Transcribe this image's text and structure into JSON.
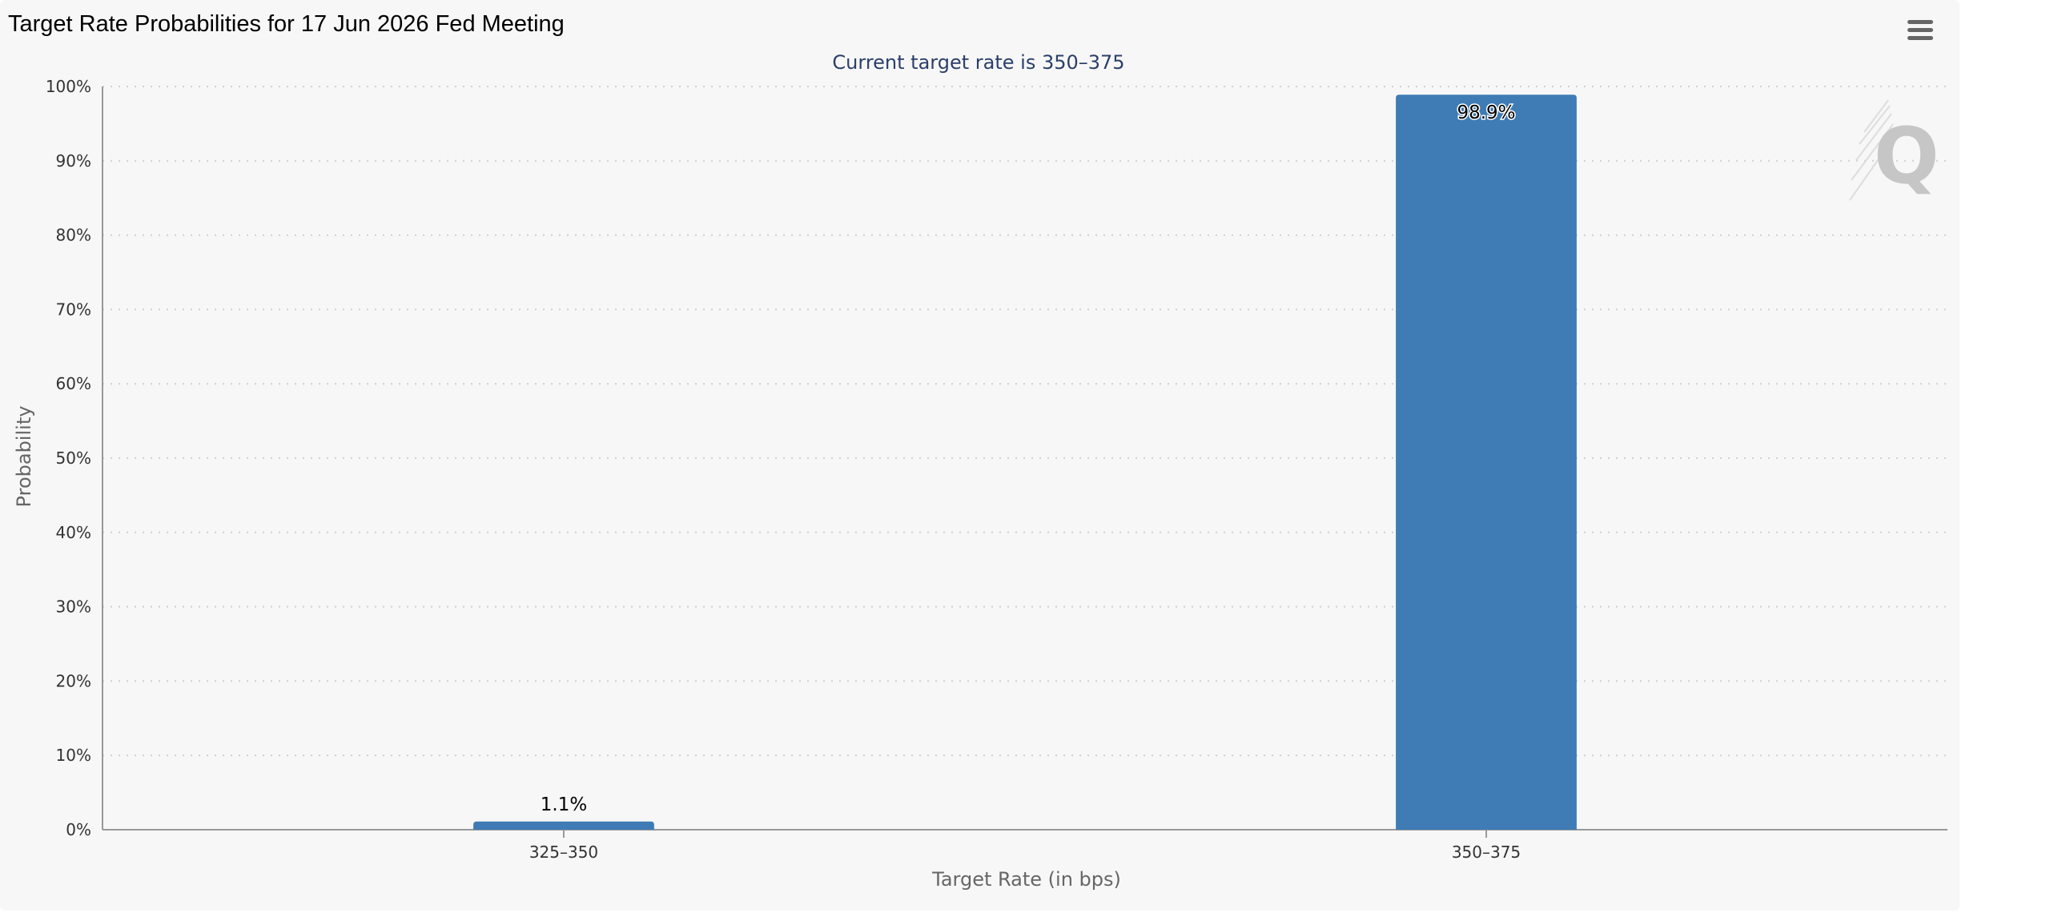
{
  "title": "Target Rate Probabilities for 17 Jun 2026 Fed Meeting",
  "menu_icon": "hamburger-menu-icon",
  "watermark_icon": "q-logo-icon",
  "colors": {
    "bar": "#3f7cb5",
    "background": "#f7f7f7",
    "grid": "#d0d0d0",
    "axis": "#999999"
  },
  "chart_data": {
    "type": "bar",
    "title": "",
    "subtitle": "Current target rate is 350–375",
    "xlabel": "Target Rate (in bps)",
    "ylabel": "Probability",
    "categories": [
      "325–350",
      "350–375"
    ],
    "values": [
      1.1,
      98.9
    ],
    "data_labels": [
      "1.1%",
      "98.9%"
    ],
    "ylim": [
      0,
      100
    ],
    "yticks": [
      0,
      10,
      20,
      30,
      40,
      50,
      60,
      70,
      80,
      90,
      100
    ],
    "ytick_labels": [
      "0%",
      "10%",
      "20%",
      "30%",
      "40%",
      "50%",
      "60%",
      "70%",
      "80%",
      "90%",
      "100%"
    ],
    "grid": true,
    "legend": "none"
  }
}
